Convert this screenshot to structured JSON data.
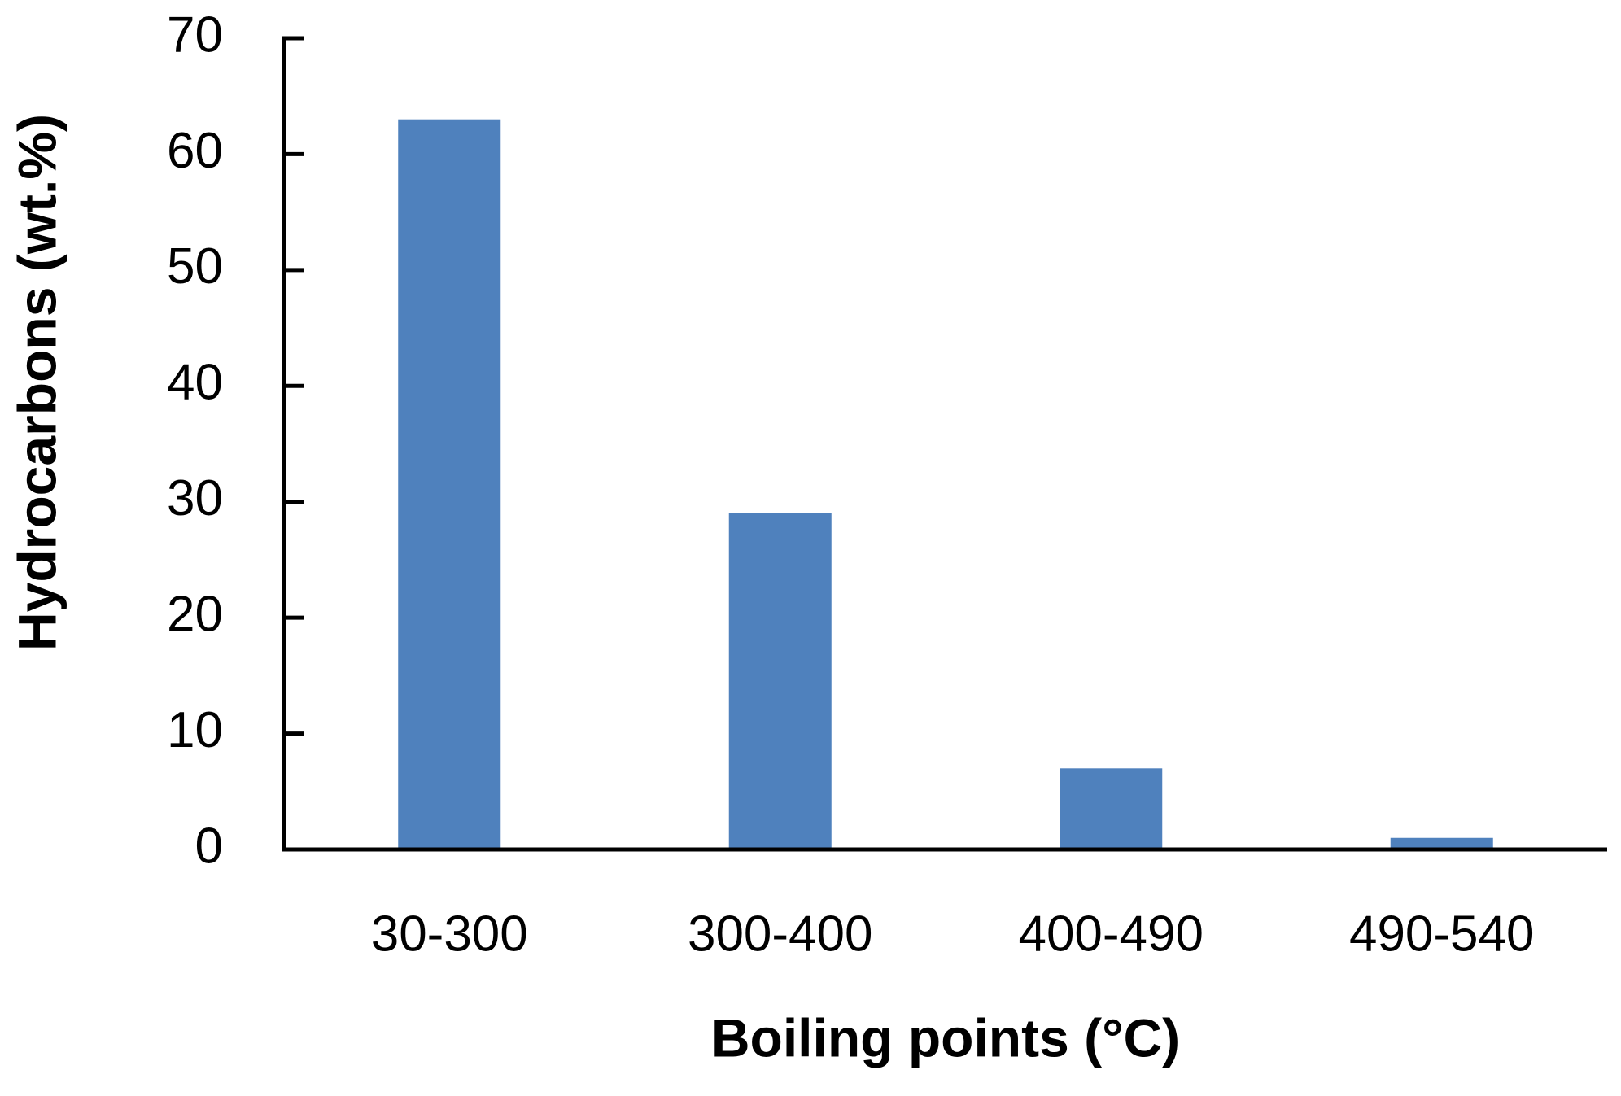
{
  "chart_data": {
    "type": "bar",
    "x_label": "Boiling points (°C)",
    "y_label": "Hydrocarbons (wt.%)",
    "categories": [
      "30-300",
      "300-400",
      "400-490",
      "490-540"
    ],
    "values": [
      63,
      29,
      7,
      1
    ],
    "color": "#4f81bd",
    "ylim": [
      0,
      70
    ],
    "yticks": [
      0,
      10,
      20,
      30,
      40,
      50,
      60,
      70
    ],
    "grid": false
  }
}
